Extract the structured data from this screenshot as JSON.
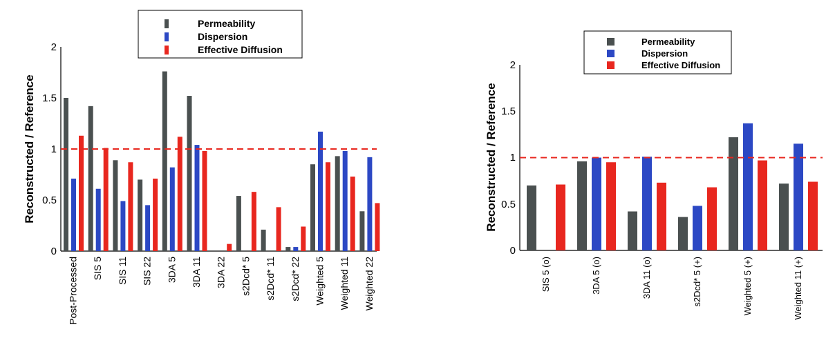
{
  "colors": {
    "permeability": "#4a5050",
    "dispersion": "#2c48c4",
    "effective_diffusion": "#e8271f",
    "reference_line": "#e8271f"
  },
  "chart_data": [
    {
      "type": "bar",
      "ylabel": "Reconstructed / Reference",
      "ylim": [
        0,
        2
      ],
      "yticks": [
        "0",
        "0.5",
        "1",
        "1.5",
        "2"
      ],
      "reference_line": 1.0,
      "legend": [
        "Permeability",
        "Dispersion",
        "Effective Diffusion"
      ],
      "legend_position": "top-center",
      "categories": [
        "Post-Processed",
        "SIS 5",
        "SIS 11",
        "SIS 22",
        "3DA 5",
        "3DA 11",
        "3DA 22",
        "s2Dcd* 5",
        "s2Dcd* 11",
        "s2Dcd* 22",
        "Weighted 5",
        "Weighted 11",
        "Weighted 22"
      ],
      "series": [
        {
          "name": "Permeability",
          "values": [
            1.5,
            1.42,
            0.89,
            0.7,
            1.76,
            1.52,
            0.0,
            0.54,
            0.21,
            0.04,
            0.85,
            0.93,
            0.39
          ]
        },
        {
          "name": "Dispersion",
          "values": [
            0.71,
            0.61,
            0.49,
            0.45,
            0.82,
            1.04,
            0.0,
            0.0,
            0.0,
            0.04,
            1.17,
            0.98,
            0.92
          ]
        },
        {
          "name": "Effective Diffusion",
          "values": [
            1.13,
            1.01,
            0.87,
            0.71,
            1.12,
            0.98,
            0.07,
            0.58,
            0.43,
            0.24,
            0.87,
            0.73,
            0.47
          ]
        }
      ]
    },
    {
      "type": "bar",
      "ylabel": "Reconstructed / Reference",
      "ylim": [
        0,
        2
      ],
      "yticks": [
        "0",
        "0.5",
        "1",
        "1.5",
        "2"
      ],
      "reference_line": 1.0,
      "legend": [
        "Permeability",
        "Dispersion",
        "Effective Diffusion"
      ],
      "legend_position": "top-center",
      "categories": [
        "SIS 5 (o)",
        "3DA 5 (o)",
        "3DA 11 (o)",
        "s2Dcd* 5 (+)",
        "Weighted 5 (+)",
        "Weighted 11 (+)"
      ],
      "series": [
        {
          "name": "Permeability",
          "values": [
            0.7,
            0.96,
            0.42,
            0.36,
            1.22,
            0.72
          ]
        },
        {
          "name": "Dispersion",
          "values": [
            0.0,
            1.0,
            1.01,
            0.48,
            1.37,
            1.15
          ]
        },
        {
          "name": "Effective Diffusion",
          "values": [
            0.71,
            0.95,
            0.73,
            0.68,
            0.97,
            0.74
          ]
        }
      ]
    }
  ]
}
